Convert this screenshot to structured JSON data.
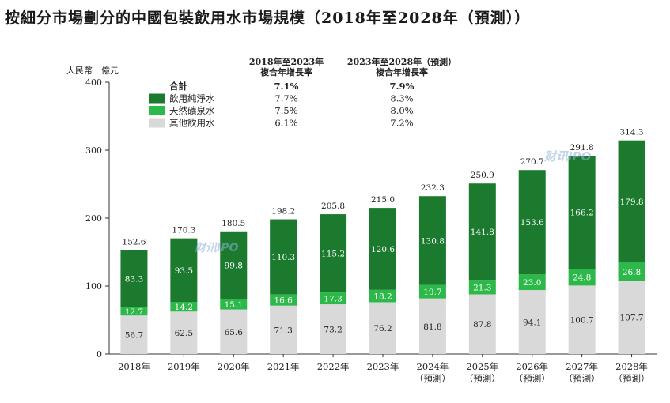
{
  "title": "按細分市場劃分的中國包裝飲用水市場規模（2018年至2028年（預測））",
  "watermark": "财讯IPO",
  "chart_data": {
    "type": "bar",
    "stacked": true,
    "unit_label": "人民幣十億元",
    "ylim": [
      0,
      400
    ],
    "yticks": [
      0,
      100,
      200,
      300,
      400
    ],
    "grid": false,
    "categories": [
      "2018年",
      "2019年",
      "2020年",
      "2021年",
      "2022年",
      "2023年",
      "2024年",
      "2025年",
      "2026年",
      "2027年",
      "2028年"
    ],
    "category_notes": [
      "",
      "",
      "",
      "",
      "",
      "",
      "（預測）",
      "（預測）",
      "（預測）",
      "（預測）",
      "（預測）"
    ],
    "series": [
      {
        "name": "其他飲用水",
        "color": "#d9d9d9",
        "values": [
          56.7,
          62.5,
          65.6,
          71.3,
          73.2,
          76.2,
          81.8,
          87.8,
          94.1,
          100.7,
          107.7
        ]
      },
      {
        "name": "天然礦泉水",
        "color": "#2db84a",
        "values": [
          12.7,
          14.2,
          15.1,
          16.6,
          17.3,
          18.2,
          19.7,
          21.3,
          23.0,
          24.8,
          26.8
        ]
      },
      {
        "name": "飲用純淨水",
        "color": "#1b7a2d",
        "values": [
          83.3,
          93.5,
          99.8,
          110.3,
          115.2,
          120.6,
          130.8,
          141.8,
          153.6,
          166.2,
          179.8
        ]
      }
    ],
    "totals": [
      "152.6",
      "170.3",
      "180.5",
      "198.2",
      "205.8",
      "215.0",
      "232.3",
      "250.9",
      "270.7",
      "291.8",
      "314.3"
    ],
    "legend": {
      "placement": "top-left",
      "header_1": "2018年至2023年\n複合年增長率",
      "header_2": "2023年至2028年（預測）\n複合年增長率",
      "rows": [
        {
          "label": "合計",
          "cagr_1": "7.1%",
          "cagr_2": "7.9%",
          "bold": true,
          "color": ""
        },
        {
          "label": "飲用純淨水",
          "cagr_1": "7.7%",
          "cagr_2": "8.3%",
          "bold": false,
          "color": "#1b7a2d"
        },
        {
          "label": "天然礦泉水",
          "cagr_1": "7.5%",
          "cagr_2": "8.0%",
          "bold": false,
          "color": "#2db84a"
        },
        {
          "label": "其他飲用水",
          "cagr_1": "6.1%",
          "cagr_2": "7.2%",
          "bold": false,
          "color": "#d9d9d9"
        }
      ]
    }
  }
}
